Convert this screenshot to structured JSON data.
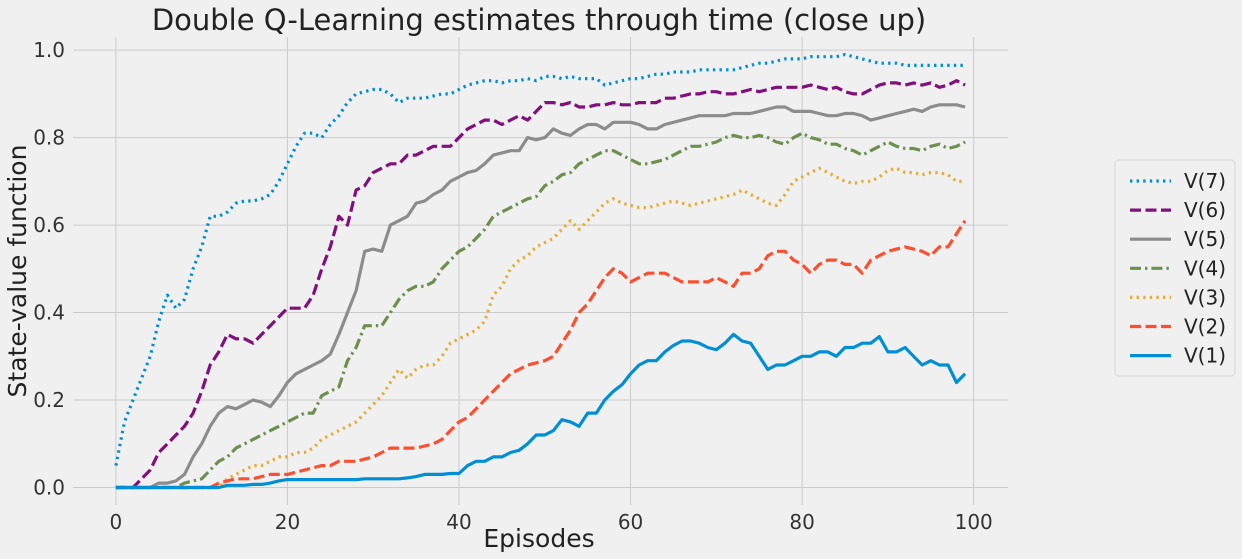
{
  "chart_data": {
    "type": "line",
    "title": "Double Q-Learning estimates through time (close up)",
    "xlabel": "Episodes",
    "ylabel": "State-value function",
    "xlim": [
      -5,
      104
    ],
    "ylim": [
      -0.04,
      1.03
    ],
    "xticks": [
      0,
      20,
      40,
      60,
      80,
      100
    ],
    "yticks": [
      0.0,
      0.2,
      0.4,
      0.6,
      0.8,
      1.0
    ],
    "xtick_labels": [
      "0",
      "20",
      "40",
      "60",
      "80",
      "100"
    ],
    "ytick_labels": [
      "0.0",
      "0.2",
      "0.4",
      "0.6",
      "0.8",
      "1.0"
    ],
    "grid": true,
    "legend_position": "right, outside plot",
    "x": [
      0,
      1,
      2,
      3,
      4,
      5,
      6,
      7,
      8,
      9,
      10,
      11,
      12,
      13,
      14,
      15,
      16,
      17,
      18,
      19,
      20,
      21,
      22,
      23,
      24,
      25,
      26,
      27,
      28,
      29,
      30,
      31,
      32,
      33,
      34,
      35,
      36,
      37,
      38,
      39,
      40,
      41,
      42,
      43,
      44,
      45,
      46,
      47,
      48,
      49,
      50,
      51,
      52,
      53,
      54,
      55,
      56,
      57,
      58,
      59,
      60,
      61,
      62,
      63,
      64,
      65,
      66,
      67,
      68,
      69,
      70,
      71,
      72,
      73,
      74,
      75,
      76,
      77,
      78,
      79,
      80,
      81,
      82,
      83,
      84,
      85,
      86,
      87,
      88,
      89,
      90,
      91,
      92,
      93,
      94,
      95,
      96,
      97,
      98,
      99
    ],
    "series": [
      {
        "name": "V(7)",
        "color": "#008fd5",
        "style": "dotted",
        "values": [
          0.05,
          0.15,
          0.2,
          0.25,
          0.3,
          0.38,
          0.44,
          0.41,
          0.43,
          0.5,
          0.55,
          0.62,
          0.62,
          0.63,
          0.65,
          0.655,
          0.655,
          0.66,
          0.67,
          0.7,
          0.74,
          0.78,
          0.81,
          0.81,
          0.8,
          0.83,
          0.85,
          0.88,
          0.9,
          0.905,
          0.91,
          0.91,
          0.9,
          0.88,
          0.89,
          0.89,
          0.89,
          0.895,
          0.9,
          0.9,
          0.91,
          0.92,
          0.925,
          0.93,
          0.93,
          0.925,
          0.93,
          0.93,
          0.935,
          0.93,
          0.94,
          0.94,
          0.935,
          0.94,
          0.935,
          0.935,
          0.935,
          0.92,
          0.925,
          0.93,
          0.935,
          0.935,
          0.94,
          0.945,
          0.945,
          0.95,
          0.95,
          0.95,
          0.955,
          0.955,
          0.955,
          0.955,
          0.955,
          0.96,
          0.965,
          0.97,
          0.97,
          0.975,
          0.98,
          0.98,
          0.98,
          0.985,
          0.985,
          0.985,
          0.985,
          0.99,
          0.985,
          0.98,
          0.975,
          0.97,
          0.97,
          0.97,
          0.965,
          0.965,
          0.965,
          0.965,
          0.965,
          0.965,
          0.965,
          0.965
        ]
      },
      {
        "name": "V(6)",
        "color": "#810f7c",
        "style": "dashed",
        "values": [
          0.0,
          0.0,
          0.0,
          0.02,
          0.04,
          0.08,
          0.1,
          0.12,
          0.14,
          0.17,
          0.22,
          0.28,
          0.31,
          0.35,
          0.34,
          0.34,
          0.33,
          0.35,
          0.37,
          0.39,
          0.41,
          0.41,
          0.41,
          0.44,
          0.5,
          0.55,
          0.62,
          0.6,
          0.68,
          0.69,
          0.72,
          0.73,
          0.74,
          0.74,
          0.76,
          0.76,
          0.77,
          0.78,
          0.78,
          0.78,
          0.8,
          0.82,
          0.83,
          0.84,
          0.84,
          0.83,
          0.84,
          0.85,
          0.84,
          0.86,
          0.88,
          0.88,
          0.875,
          0.88,
          0.87,
          0.87,
          0.875,
          0.875,
          0.88,
          0.875,
          0.875,
          0.88,
          0.88,
          0.88,
          0.89,
          0.89,
          0.895,
          0.9,
          0.9,
          0.905,
          0.905,
          0.9,
          0.9,
          0.905,
          0.91,
          0.905,
          0.91,
          0.915,
          0.915,
          0.915,
          0.915,
          0.92,
          0.915,
          0.91,
          0.915,
          0.905,
          0.9,
          0.9,
          0.91,
          0.92,
          0.925,
          0.925,
          0.92,
          0.925,
          0.92,
          0.925,
          0.915,
          0.92,
          0.93,
          0.92
        ]
      },
      {
        "name": "V(5)",
        "color": "#8c8c8c",
        "style": "solid",
        "values": [
          0.0,
          0.0,
          0.0,
          0.0,
          0.0,
          0.01,
          0.01,
          0.015,
          0.03,
          0.07,
          0.1,
          0.14,
          0.17,
          0.185,
          0.18,
          0.19,
          0.2,
          0.195,
          0.185,
          0.21,
          0.24,
          0.26,
          0.27,
          0.28,
          0.29,
          0.305,
          0.35,
          0.4,
          0.45,
          0.54,
          0.545,
          0.54,
          0.6,
          0.61,
          0.62,
          0.65,
          0.655,
          0.67,
          0.68,
          0.7,
          0.71,
          0.72,
          0.725,
          0.74,
          0.76,
          0.765,
          0.77,
          0.77,
          0.8,
          0.795,
          0.8,
          0.82,
          0.81,
          0.805,
          0.82,
          0.83,
          0.83,
          0.82,
          0.835,
          0.835,
          0.835,
          0.83,
          0.82,
          0.82,
          0.83,
          0.835,
          0.84,
          0.845,
          0.85,
          0.85,
          0.85,
          0.85,
          0.855,
          0.855,
          0.855,
          0.86,
          0.865,
          0.87,
          0.87,
          0.86,
          0.86,
          0.86,
          0.855,
          0.85,
          0.85,
          0.855,
          0.855,
          0.85,
          0.84,
          0.845,
          0.85,
          0.855,
          0.86,
          0.865,
          0.86,
          0.87,
          0.875,
          0.875,
          0.875,
          0.87
        ]
      },
      {
        "name": "V(4)",
        "color": "#6d904f",
        "style": "dashdot",
        "values": [
          0.0,
          0.0,
          0.0,
          0.0,
          0.0,
          0.0,
          0.0,
          0.0,
          0.01,
          0.015,
          0.02,
          0.04,
          0.06,
          0.07,
          0.09,
          0.1,
          0.11,
          0.12,
          0.13,
          0.14,
          0.15,
          0.16,
          0.17,
          0.17,
          0.21,
          0.22,
          0.23,
          0.29,
          0.32,
          0.37,
          0.37,
          0.37,
          0.4,
          0.43,
          0.45,
          0.46,
          0.46,
          0.47,
          0.5,
          0.52,
          0.54,
          0.55,
          0.57,
          0.59,
          0.62,
          0.63,
          0.64,
          0.65,
          0.66,
          0.665,
          0.69,
          0.7,
          0.715,
          0.72,
          0.74,
          0.75,
          0.76,
          0.77,
          0.77,
          0.76,
          0.75,
          0.74,
          0.74,
          0.745,
          0.75,
          0.76,
          0.77,
          0.78,
          0.78,
          0.785,
          0.79,
          0.8,
          0.805,
          0.8,
          0.8,
          0.805,
          0.8,
          0.79,
          0.785,
          0.8,
          0.81,
          0.8,
          0.795,
          0.785,
          0.785,
          0.775,
          0.77,
          0.76,
          0.77,
          0.78,
          0.79,
          0.78,
          0.775,
          0.775,
          0.77,
          0.78,
          0.785,
          0.775,
          0.78,
          0.79
        ]
      },
      {
        "name": "V(3)",
        "color": "#e5ae38",
        "style": "dotted",
        "values": [
          0.0,
          0.0,
          0.0,
          0.0,
          0.0,
          0.0,
          0.0,
          0.0,
          0.0,
          0.0,
          0.0,
          0.0,
          0.0,
          0.02,
          0.03,
          0.04,
          0.05,
          0.05,
          0.06,
          0.07,
          0.07,
          0.08,
          0.08,
          0.09,
          0.11,
          0.12,
          0.13,
          0.14,
          0.15,
          0.17,
          0.19,
          0.21,
          0.24,
          0.27,
          0.25,
          0.27,
          0.28,
          0.28,
          0.3,
          0.33,
          0.34,
          0.35,
          0.36,
          0.38,
          0.44,
          0.46,
          0.5,
          0.52,
          0.53,
          0.55,
          0.56,
          0.57,
          0.59,
          0.61,
          0.59,
          0.61,
          0.63,
          0.65,
          0.66,
          0.65,
          0.645,
          0.64,
          0.64,
          0.645,
          0.65,
          0.655,
          0.65,
          0.645,
          0.65,
          0.655,
          0.66,
          0.665,
          0.67,
          0.68,
          0.67,
          0.66,
          0.65,
          0.645,
          0.67,
          0.7,
          0.71,
          0.72,
          0.73,
          0.72,
          0.71,
          0.7,
          0.695,
          0.7,
          0.7,
          0.71,
          0.725,
          0.73,
          0.72,
          0.72,
          0.715,
          0.72,
          0.72,
          0.715,
          0.7,
          0.7
        ]
      },
      {
        "name": "V(2)",
        "color": "#fc4f30",
        "style": "dashed",
        "values": [
          0.0,
          0.0,
          0.0,
          0.0,
          0.0,
          0.0,
          0.0,
          0.0,
          0.0,
          0.0,
          0.0,
          0.0,
          0.01,
          0.015,
          0.02,
          0.02,
          0.02,
          0.025,
          0.03,
          0.03,
          0.03,
          0.035,
          0.04,
          0.045,
          0.05,
          0.05,
          0.06,
          0.06,
          0.06,
          0.065,
          0.07,
          0.08,
          0.09,
          0.09,
          0.09,
          0.09,
          0.095,
          0.1,
          0.11,
          0.13,
          0.15,
          0.16,
          0.18,
          0.2,
          0.22,
          0.24,
          0.26,
          0.27,
          0.28,
          0.285,
          0.29,
          0.3,
          0.33,
          0.36,
          0.4,
          0.42,
          0.45,
          0.48,
          0.5,
          0.49,
          0.47,
          0.48,
          0.49,
          0.49,
          0.49,
          0.48,
          0.47,
          0.47,
          0.47,
          0.47,
          0.48,
          0.47,
          0.46,
          0.49,
          0.49,
          0.5,
          0.53,
          0.54,
          0.54,
          0.52,
          0.51,
          0.49,
          0.51,
          0.52,
          0.52,
          0.51,
          0.51,
          0.49,
          0.52,
          0.53,
          0.54,
          0.545,
          0.55,
          0.545,
          0.54,
          0.53,
          0.55,
          0.55,
          0.58,
          0.61
        ]
      },
      {
        "name": "V(1)",
        "color": "#008fd5",
        "style": "solid",
        "values": [
          0.0,
          0.0,
          0.0,
          0.0,
          0.0,
          0.0,
          0.0,
          0.0,
          0.0,
          0.0,
          0.0,
          0.0,
          0.0,
          0.005,
          0.005,
          0.005,
          0.007,
          0.007,
          0.01,
          0.015,
          0.018,
          0.018,
          0.018,
          0.018,
          0.018,
          0.018,
          0.018,
          0.018,
          0.018,
          0.02,
          0.02,
          0.02,
          0.02,
          0.02,
          0.022,
          0.025,
          0.03,
          0.03,
          0.03,
          0.032,
          0.032,
          0.05,
          0.06,
          0.06,
          0.07,
          0.07,
          0.08,
          0.085,
          0.1,
          0.12,
          0.12,
          0.13,
          0.155,
          0.15,
          0.14,
          0.17,
          0.17,
          0.2,
          0.22,
          0.235,
          0.26,
          0.28,
          0.29,
          0.29,
          0.31,
          0.325,
          0.335,
          0.335,
          0.33,
          0.32,
          0.315,
          0.33,
          0.35,
          0.335,
          0.33,
          0.3,
          0.27,
          0.28,
          0.28,
          0.29,
          0.3,
          0.3,
          0.31,
          0.31,
          0.3,
          0.32,
          0.32,
          0.33,
          0.33,
          0.345,
          0.31,
          0.31,
          0.32,
          0.3,
          0.28,
          0.29,
          0.28,
          0.28,
          0.24,
          0.26
        ]
      }
    ]
  }
}
